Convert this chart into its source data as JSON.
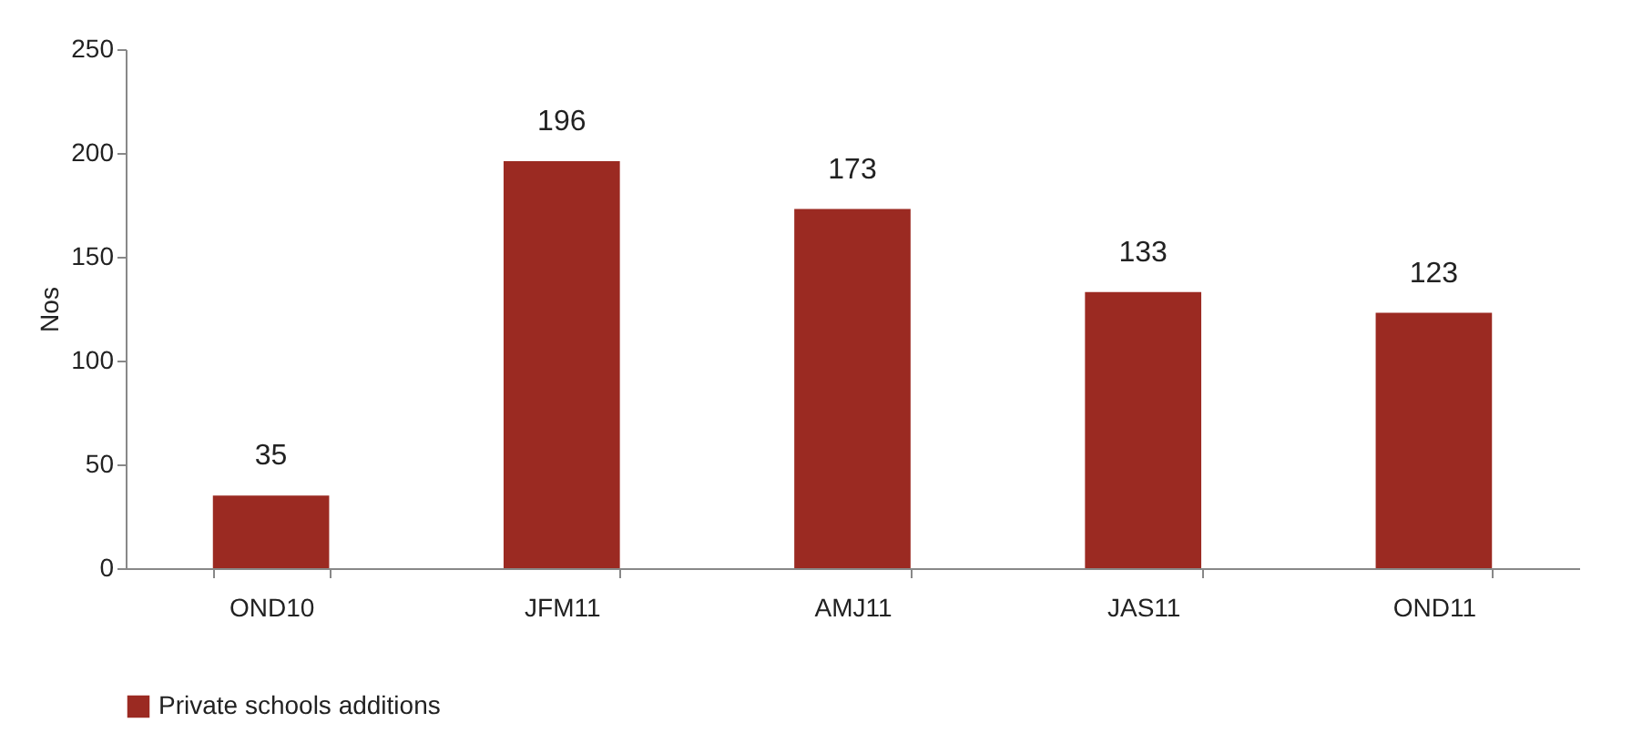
{
  "chart_data": {
    "type": "bar",
    "ylabel": "Nos",
    "categories": [
      "OND10",
      "JFM11",
      "AMJ11",
      "JAS11",
      "OND11"
    ],
    "series": [
      {
        "name": "Private schools additions",
        "color": "#9b2a22",
        "values": [
          35,
          196,
          173,
          133,
          123
        ]
      }
    ],
    "ylim": [
      0,
      250
    ],
    "yticks": [
      0,
      50,
      100,
      150,
      200,
      250
    ],
    "grid": false,
    "legend": "bottom",
    "data_labels": true
  }
}
